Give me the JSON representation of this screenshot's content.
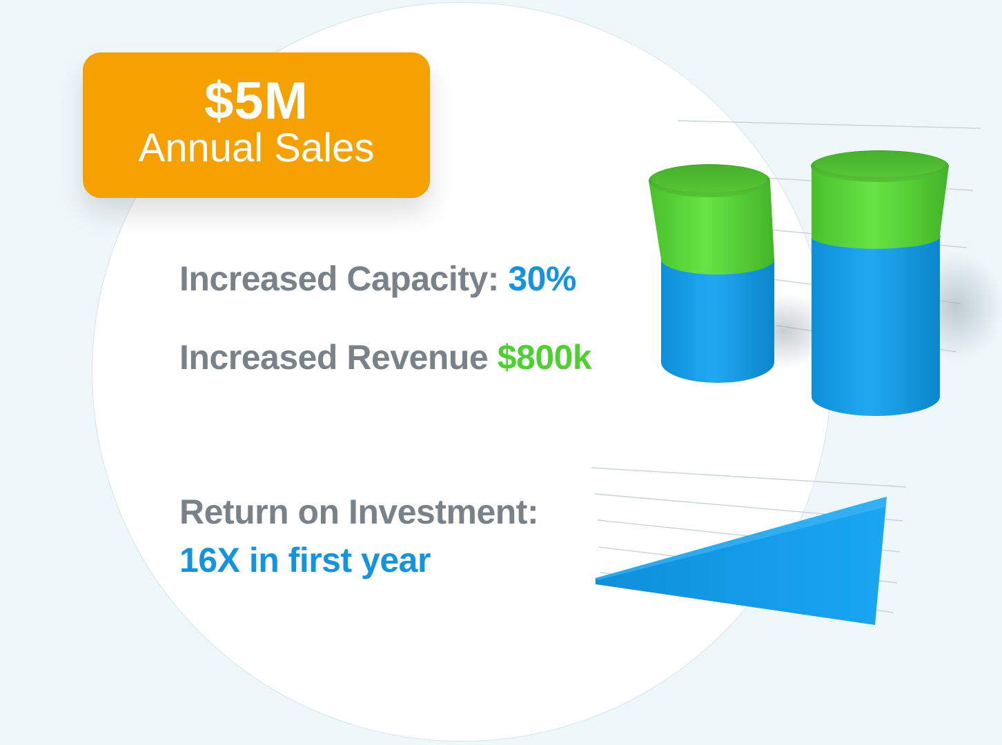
{
  "callout": {
    "amount": "$5M",
    "label": "Annual Sales"
  },
  "stats": {
    "capacity_label": "Increased Capacity:",
    "capacity_value": "30%",
    "revenue_label": "Increased Revenue",
    "revenue_value": "$800k",
    "roi_label": "Return on Investment:",
    "roi_value": "16X in first year"
  },
  "colors": {
    "accent_orange": "#f5a102",
    "accent_blue": "#1594dd",
    "accent_green": "#4fcf34",
    "text_gray": "#798189"
  }
}
